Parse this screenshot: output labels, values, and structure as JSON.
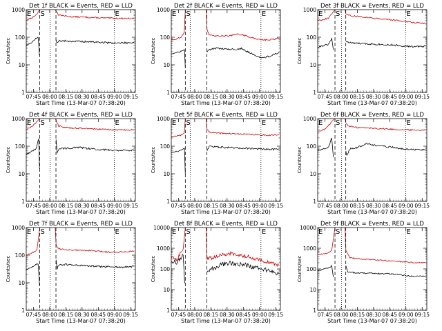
{
  "figure": {
    "panels_per_row": 3,
    "ylabel": "Counts/sec",
    "xlabel": "Start Time (13-Mar-07 07:38:20)",
    "x_ticks": [
      "07:45",
      "08:00",
      "08:15",
      "08:30",
      "08:45",
      "09:00",
      "09:15"
    ],
    "x_tick_minutes": [
      6.67,
      21.67,
      36.67,
      51.67,
      66.67,
      81.67,
      96.67
    ],
    "x_range_minutes": [
      0,
      101
    ],
    "ylim": [
      1,
      10000
    ],
    "y_log": true,
    "series_colors": {
      "events": "#000000",
      "lld": "#cc0000"
    },
    "markers": {
      "s_label": "S",
      "e_label": "E"
    }
  },
  "chart_data": [
    {
      "type": "line",
      "title": "Det 1f BLACK = Events, RED = LLD",
      "ymax": 1000,
      "y_ticks": [
        1,
        10,
        100,
        1000
      ],
      "y_tick_labels": [
        "1",
        "10",
        "100",
        "1000"
      ],
      "s_left": 12.5,
      "s_right": 22.0,
      "gap_end": 27.5,
      "e_line": 81.5,
      "events_pre": [
        [
          0,
          50
        ],
        [
          5,
          65
        ],
        [
          8,
          85
        ],
        [
          11,
          100
        ],
        [
          12.3,
          22
        ]
      ],
      "events_post": [
        [
          27.6,
          85
        ],
        [
          28.5,
          60
        ],
        [
          30,
          75
        ],
        [
          40,
          72
        ],
        [
          50,
          70
        ],
        [
          60,
          68
        ],
        [
          70,
          65
        ],
        [
          80,
          62
        ],
        [
          90,
          62
        ],
        [
          100,
          65
        ]
      ],
      "lld_pre": [
        [
          0,
          420
        ],
        [
          5,
          500
        ],
        [
          8,
          600
        ],
        [
          10,
          700
        ]
      ],
      "lld_post": [
        [
          27.6,
          900
        ],
        [
          28.5,
          800
        ],
        [
          30,
          650
        ],
        [
          35,
          600
        ],
        [
          40,
          560
        ],
        [
          50,
          540
        ],
        [
          60,
          520
        ],
        [
          70,
          500
        ],
        [
          80,
          490
        ],
        [
          90,
          480
        ],
        [
          100,
          480
        ]
      ]
    },
    {
      "type": "line",
      "title": "Det 2f BLACK = Events, RED = LLD",
      "ymax": 1000,
      "y_ticks": [
        1,
        10,
        100,
        1000
      ],
      "y_tick_labels": [
        "1",
        "10",
        "100",
        "1000"
      ],
      "s_left": 13.0,
      "s_right": 17.5,
      "gap_end": 33.0,
      "e_line": 83.0,
      "events_pre": [
        [
          0,
          25
        ],
        [
          6,
          28
        ],
        [
          10,
          32
        ],
        [
          12.2,
          35
        ],
        [
          13,
          8
        ]
      ],
      "events_post": [
        [
          33.1,
          30
        ],
        [
          35,
          35
        ],
        [
          40,
          40
        ],
        [
          50,
          38
        ],
        [
          60,
          36
        ],
        [
          65,
          40
        ],
        [
          70,
          30
        ],
        [
          75,
          25
        ],
        [
          80,
          20
        ],
        [
          85,
          18
        ],
        [
          90,
          20
        ],
        [
          100,
          28
        ]
      ],
      "lld_pre": [
        [
          0,
          80
        ],
        [
          6,
          90
        ],
        [
          10,
          110
        ],
        [
          12,
          150
        ]
      ],
      "lld_post": [
        [
          33.1,
          200
        ],
        [
          35,
          120
        ],
        [
          40,
          110
        ],
        [
          50,
          110
        ],
        [
          58,
          120
        ],
        [
          62,
          130
        ],
        [
          68,
          115
        ],
        [
          75,
          95
        ],
        [
          80,
          85
        ],
        [
          90,
          80
        ],
        [
          100,
          90
        ]
      ]
    },
    {
      "type": "line",
      "title": "Det 3f BLACK = Events, RED = LLD",
      "ymax": 1000,
      "y_ticks": [
        1,
        10,
        100,
        1000
      ],
      "y_tick_labels": [
        "1",
        "10",
        "100",
        "1000"
      ],
      "s_left": 16.0,
      "s_right": 22.0,
      "gap_end": 26.0,
      "e_line": 81.5,
      "events_pre": [
        [
          0,
          45
        ],
        [
          6,
          50
        ],
        [
          10,
          55
        ],
        [
          13,
          90
        ],
        [
          14.5,
          35
        ]
      ],
      "events_post": [
        [
          26.1,
          75
        ],
        [
          28,
          65
        ],
        [
          35,
          60
        ],
        [
          45,
          58
        ],
        [
          60,
          55
        ],
        [
          70,
          52
        ],
        [
          80,
          48
        ],
        [
          90,
          45
        ],
        [
          100,
          48
        ]
      ],
      "lld_pre": [
        [
          0,
          400
        ],
        [
          6,
          450
        ],
        [
          10,
          500
        ],
        [
          13,
          700
        ]
      ],
      "lld_post": [
        [
          26.1,
          700
        ],
        [
          30,
          600
        ],
        [
          40,
          560
        ],
        [
          50,
          500
        ],
        [
          60,
          460
        ],
        [
          70,
          420
        ],
        [
          80,
          380
        ],
        [
          90,
          340
        ],
        [
          100,
          320
        ]
      ]
    },
    {
      "type": "line",
      "title": "Det 4f BLACK = Events, RED = LLD",
      "ymax": 1000,
      "y_ticks": [
        1,
        10,
        100,
        1000
      ],
      "y_tick_labels": [
        "1",
        "10",
        "100",
        "1000"
      ],
      "s_left": 12.5,
      "s_right": 22.0,
      "gap_end": 27.5,
      "e_line": 81.5,
      "events_pre": [
        [
          0,
          50
        ],
        [
          5,
          65
        ],
        [
          9,
          80
        ],
        [
          11.5,
          180
        ],
        [
          12.3,
          15
        ]
      ],
      "events_post": [
        [
          27.6,
          180
        ],
        [
          28.5,
          60
        ],
        [
          30,
          80
        ],
        [
          40,
          85
        ],
        [
          50,
          90
        ],
        [
          60,
          80
        ],
        [
          70,
          75
        ],
        [
          80,
          72
        ],
        [
          90,
          70
        ],
        [
          100,
          72
        ]
      ],
      "lld_pre": [
        [
          0,
          400
        ],
        [
          5,
          500
        ],
        [
          8,
          650
        ],
        [
          10,
          800
        ]
      ],
      "lld_post": [
        [
          27.6,
          900
        ],
        [
          28.5,
          700
        ],
        [
          30,
          550
        ],
        [
          35,
          480
        ],
        [
          45,
          450
        ],
        [
          55,
          440
        ],
        [
          65,
          420
        ],
        [
          75,
          400
        ],
        [
          85,
          390
        ],
        [
          100,
          390
        ]
      ]
    },
    {
      "type": "line",
      "title": "Det 5f BLACK = Events, RED = LLD",
      "ymax": 1000,
      "y_ticks": [
        1,
        10,
        100,
        1000
      ],
      "y_tick_labels": [
        "1",
        "10",
        "100",
        "1000"
      ],
      "s_left": 13.0,
      "s_right": 17.5,
      "gap_end": 33.0,
      "e_line": 83.0,
      "events_pre": [
        [
          0,
          60
        ],
        [
          6,
          65
        ],
        [
          10,
          75
        ],
        [
          12.2,
          80
        ],
        [
          13,
          10
        ]
      ],
      "events_post": [
        [
          33.1,
          70
        ],
        [
          35,
          100
        ],
        [
          40,
          95
        ],
        [
          50,
          90
        ],
        [
          60,
          85
        ],
        [
          70,
          85
        ],
        [
          80,
          80
        ],
        [
          90,
          75
        ],
        [
          100,
          80
        ]
      ],
      "lld_pre": [
        [
          0,
          220
        ],
        [
          6,
          240
        ],
        [
          10,
          260
        ],
        [
          12,
          300
        ]
      ],
      "lld_post": [
        [
          33.1,
          400
        ],
        [
          35,
          330
        ],
        [
          40,
          300
        ],
        [
          50,
          290
        ],
        [
          60,
          280
        ],
        [
          70,
          270
        ],
        [
          80,
          260
        ],
        [
          90,
          250
        ],
        [
          100,
          260
        ]
      ]
    },
    {
      "type": "line",
      "title": "Det 6f BLACK = Events, RED = LLD",
      "ymax": 1000,
      "y_ticks": [
        1,
        10,
        100,
        1000
      ],
      "y_tick_labels": [
        "1",
        "10",
        "100",
        "1000"
      ],
      "s_left": 16.0,
      "s_right": 22.0,
      "gap_end": 26.0,
      "e_line": 81.5,
      "events_pre": [
        [
          0,
          70
        ],
        [
          6,
          80
        ],
        [
          10,
          90
        ],
        [
          13,
          200
        ],
        [
          14.5,
          40
        ]
      ],
      "events_post": [
        [
          26.1,
          70
        ],
        [
          27,
          45
        ],
        [
          30,
          80
        ],
        [
          35,
          85
        ],
        [
          40,
          100
        ],
        [
          45,
          130
        ],
        [
          50,
          110
        ],
        [
          60,
          100
        ],
        [
          70,
          90
        ],
        [
          80,
          80
        ],
        [
          90,
          75
        ],
        [
          100,
          75
        ]
      ],
      "lld_pre": [
        [
          0,
          350
        ],
        [
          6,
          400
        ],
        [
          10,
          550
        ],
        [
          13,
          800
        ]
      ],
      "lld_post": [
        [
          26.1,
          700
        ],
        [
          28,
          550
        ],
        [
          35,
          480
        ],
        [
          45,
          460
        ],
        [
          55,
          440
        ],
        [
          65,
          420
        ],
        [
          75,
          400
        ],
        [
          85,
          390
        ],
        [
          100,
          380
        ]
      ]
    },
    {
      "type": "line",
      "title": "Det 7f BLACK = Events, RED = LLD",
      "ymax": 1000,
      "y_ticks": [
        1,
        10,
        100,
        1000
      ],
      "y_tick_labels": [
        "1",
        "10",
        "100",
        "1000"
      ],
      "s_left": 12.5,
      "s_right": 22.0,
      "gap_end": 27.5,
      "e_line": 81.5,
      "events_pre": [
        [
          0,
          30
        ],
        [
          5,
          35
        ],
        [
          8,
          45
        ],
        [
          11,
          50
        ],
        [
          12.3,
          8
        ]
      ],
      "events_post": [
        [
          27.6,
          70
        ],
        [
          28.5,
          30
        ],
        [
          30,
          45
        ],
        [
          40,
          45
        ],
        [
          50,
          42
        ],
        [
          60,
          40
        ],
        [
          70,
          38
        ],
        [
          80,
          38
        ],
        [
          90,
          36
        ],
        [
          100,
          40
        ]
      ],
      "lld_pre": [
        [
          0,
          100
        ],
        [
          5,
          120
        ],
        [
          8,
          140
        ],
        [
          10,
          160
        ]
      ],
      "lld_post": [
        [
          27.6,
          250
        ],
        [
          29,
          180
        ],
        [
          35,
          160
        ],
        [
          45,
          150
        ],
        [
          55,
          150
        ],
        [
          65,
          140
        ],
        [
          75,
          130
        ],
        [
          85,
          130
        ],
        [
          100,
          140
        ]
      ]
    },
    {
      "type": "line",
      "title": "Det 8f BLACK = Events, RED = LLD",
      "ymax": 10000,
      "y_ticks": [
        1,
        10,
        100,
        1000,
        10000
      ],
      "y_tick_labels": [
        "1",
        "10",
        "100",
        "1000",
        "10000"
      ],
      "s_left": 13.0,
      "s_right": 17.5,
      "gap_end": 33.0,
      "e_line": 83.0,
      "events_pre": [
        [
          0,
          250
        ],
        [
          5,
          200
        ],
        [
          9,
          350
        ],
        [
          11,
          500
        ],
        [
          12.4,
          20
        ]
      ],
      "events_post": [
        [
          33.1,
          80
        ],
        [
          38,
          100
        ],
        [
          45,
          150
        ],
        [
          55,
          200
        ],
        [
          60,
          180
        ],
        [
          70,
          150
        ],
        [
          80,
          110
        ],
        [
          90,
          80
        ],
        [
          100,
          60
        ]
      ],
      "lld_pre": [
        [
          0,
          350
        ],
        [
          5,
          300
        ],
        [
          9,
          600
        ],
        [
          11,
          900
        ]
      ],
      "lld_post": [
        [
          33.1,
          300
        ],
        [
          38,
          350
        ],
        [
          45,
          450
        ],
        [
          55,
          550
        ],
        [
          62,
          480
        ],
        [
          70,
          400
        ],
        [
          80,
          300
        ],
        [
          90,
          200
        ],
        [
          100,
          150
        ]
      ]
    },
    {
      "type": "line",
      "title": "Det 9f BLACK = Events, RED = LLD",
      "ymax": 10000,
      "y_ticks": [
        1,
        10,
        100,
        1000,
        10000
      ],
      "y_tick_labels": [
        "1",
        "10",
        "100",
        "1000",
        "10000"
      ],
      "s_left": 16.0,
      "s_right": 22.0,
      "gap_end": 26.0,
      "e_line": 81.5,
      "events_pre": [
        [
          0,
          80
        ],
        [
          6,
          100
        ],
        [
          10,
          110
        ],
        [
          13,
          140
        ],
        [
          14.5,
          40
        ]
      ],
      "events_post": [
        [
          26.1,
          150
        ],
        [
          28,
          70
        ],
        [
          35,
          65
        ],
        [
          45,
          62
        ],
        [
          55,
          60
        ],
        [
          65,
          58
        ],
        [
          75,
          55
        ],
        [
          85,
          45
        ],
        [
          100,
          45
        ]
      ],
      "lld_pre": [
        [
          0,
          500
        ],
        [
          6,
          550
        ],
        [
          10,
          600
        ],
        [
          13,
          800
        ]
      ],
      "lld_post": [
        [
          26.1,
          800
        ],
        [
          30,
          350
        ],
        [
          40,
          300
        ],
        [
          50,
          280
        ],
        [
          60,
          260
        ],
        [
          70,
          240
        ],
        [
          80,
          220
        ],
        [
          90,
          200
        ],
        [
          100,
          200
        ]
      ]
    }
  ]
}
